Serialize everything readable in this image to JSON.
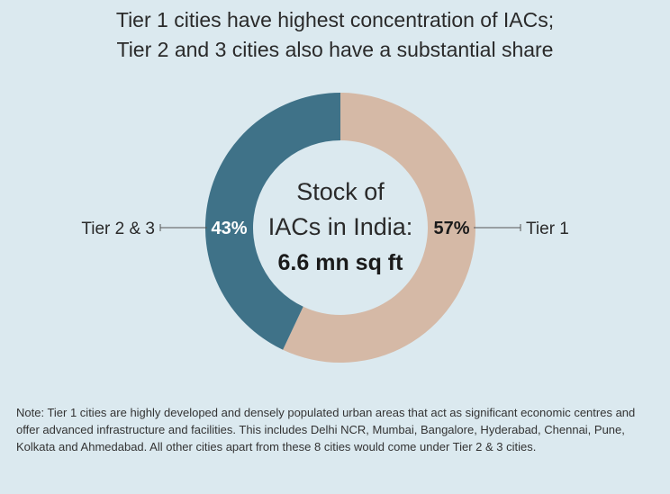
{
  "title_lines": [
    "Tier 1 cities have highest concentration of IACs;",
    "Tier 2 and 3 cities also have a substantial share"
  ],
  "center_text": {
    "line1": "Stock of",
    "line2": "IACs in India:",
    "line3": "6.6 mn sq ft"
  },
  "note": "Note: Tier 1 cities are highly developed and densely populated urban areas that act as significant economic centres and offer advanced infrastructure and facilities. This includes Delhi NCR, Mumbai, Bangalore, Hyderabad, Chennai, Pune, Kolkata and Ahmedabad. All other cities apart from these 8 cities would come under Tier 2 & 3 cities.",
  "colors": {
    "tier1": "#d5b9a6",
    "tier2_3": "#3f7288",
    "hole": "#dbe9ef"
  },
  "chart_data": {
    "type": "pie",
    "style": "donut",
    "unit": "%",
    "slices": [
      {
        "label": "Tier 1",
        "value": 57,
        "value_label": "57%",
        "color": "#d5b9a6",
        "label_side": "right"
      },
      {
        "label": "Tier 2 & 3",
        "value": 43,
        "value_label": "43%",
        "color": "#3f7288",
        "label_side": "left"
      }
    ]
  }
}
